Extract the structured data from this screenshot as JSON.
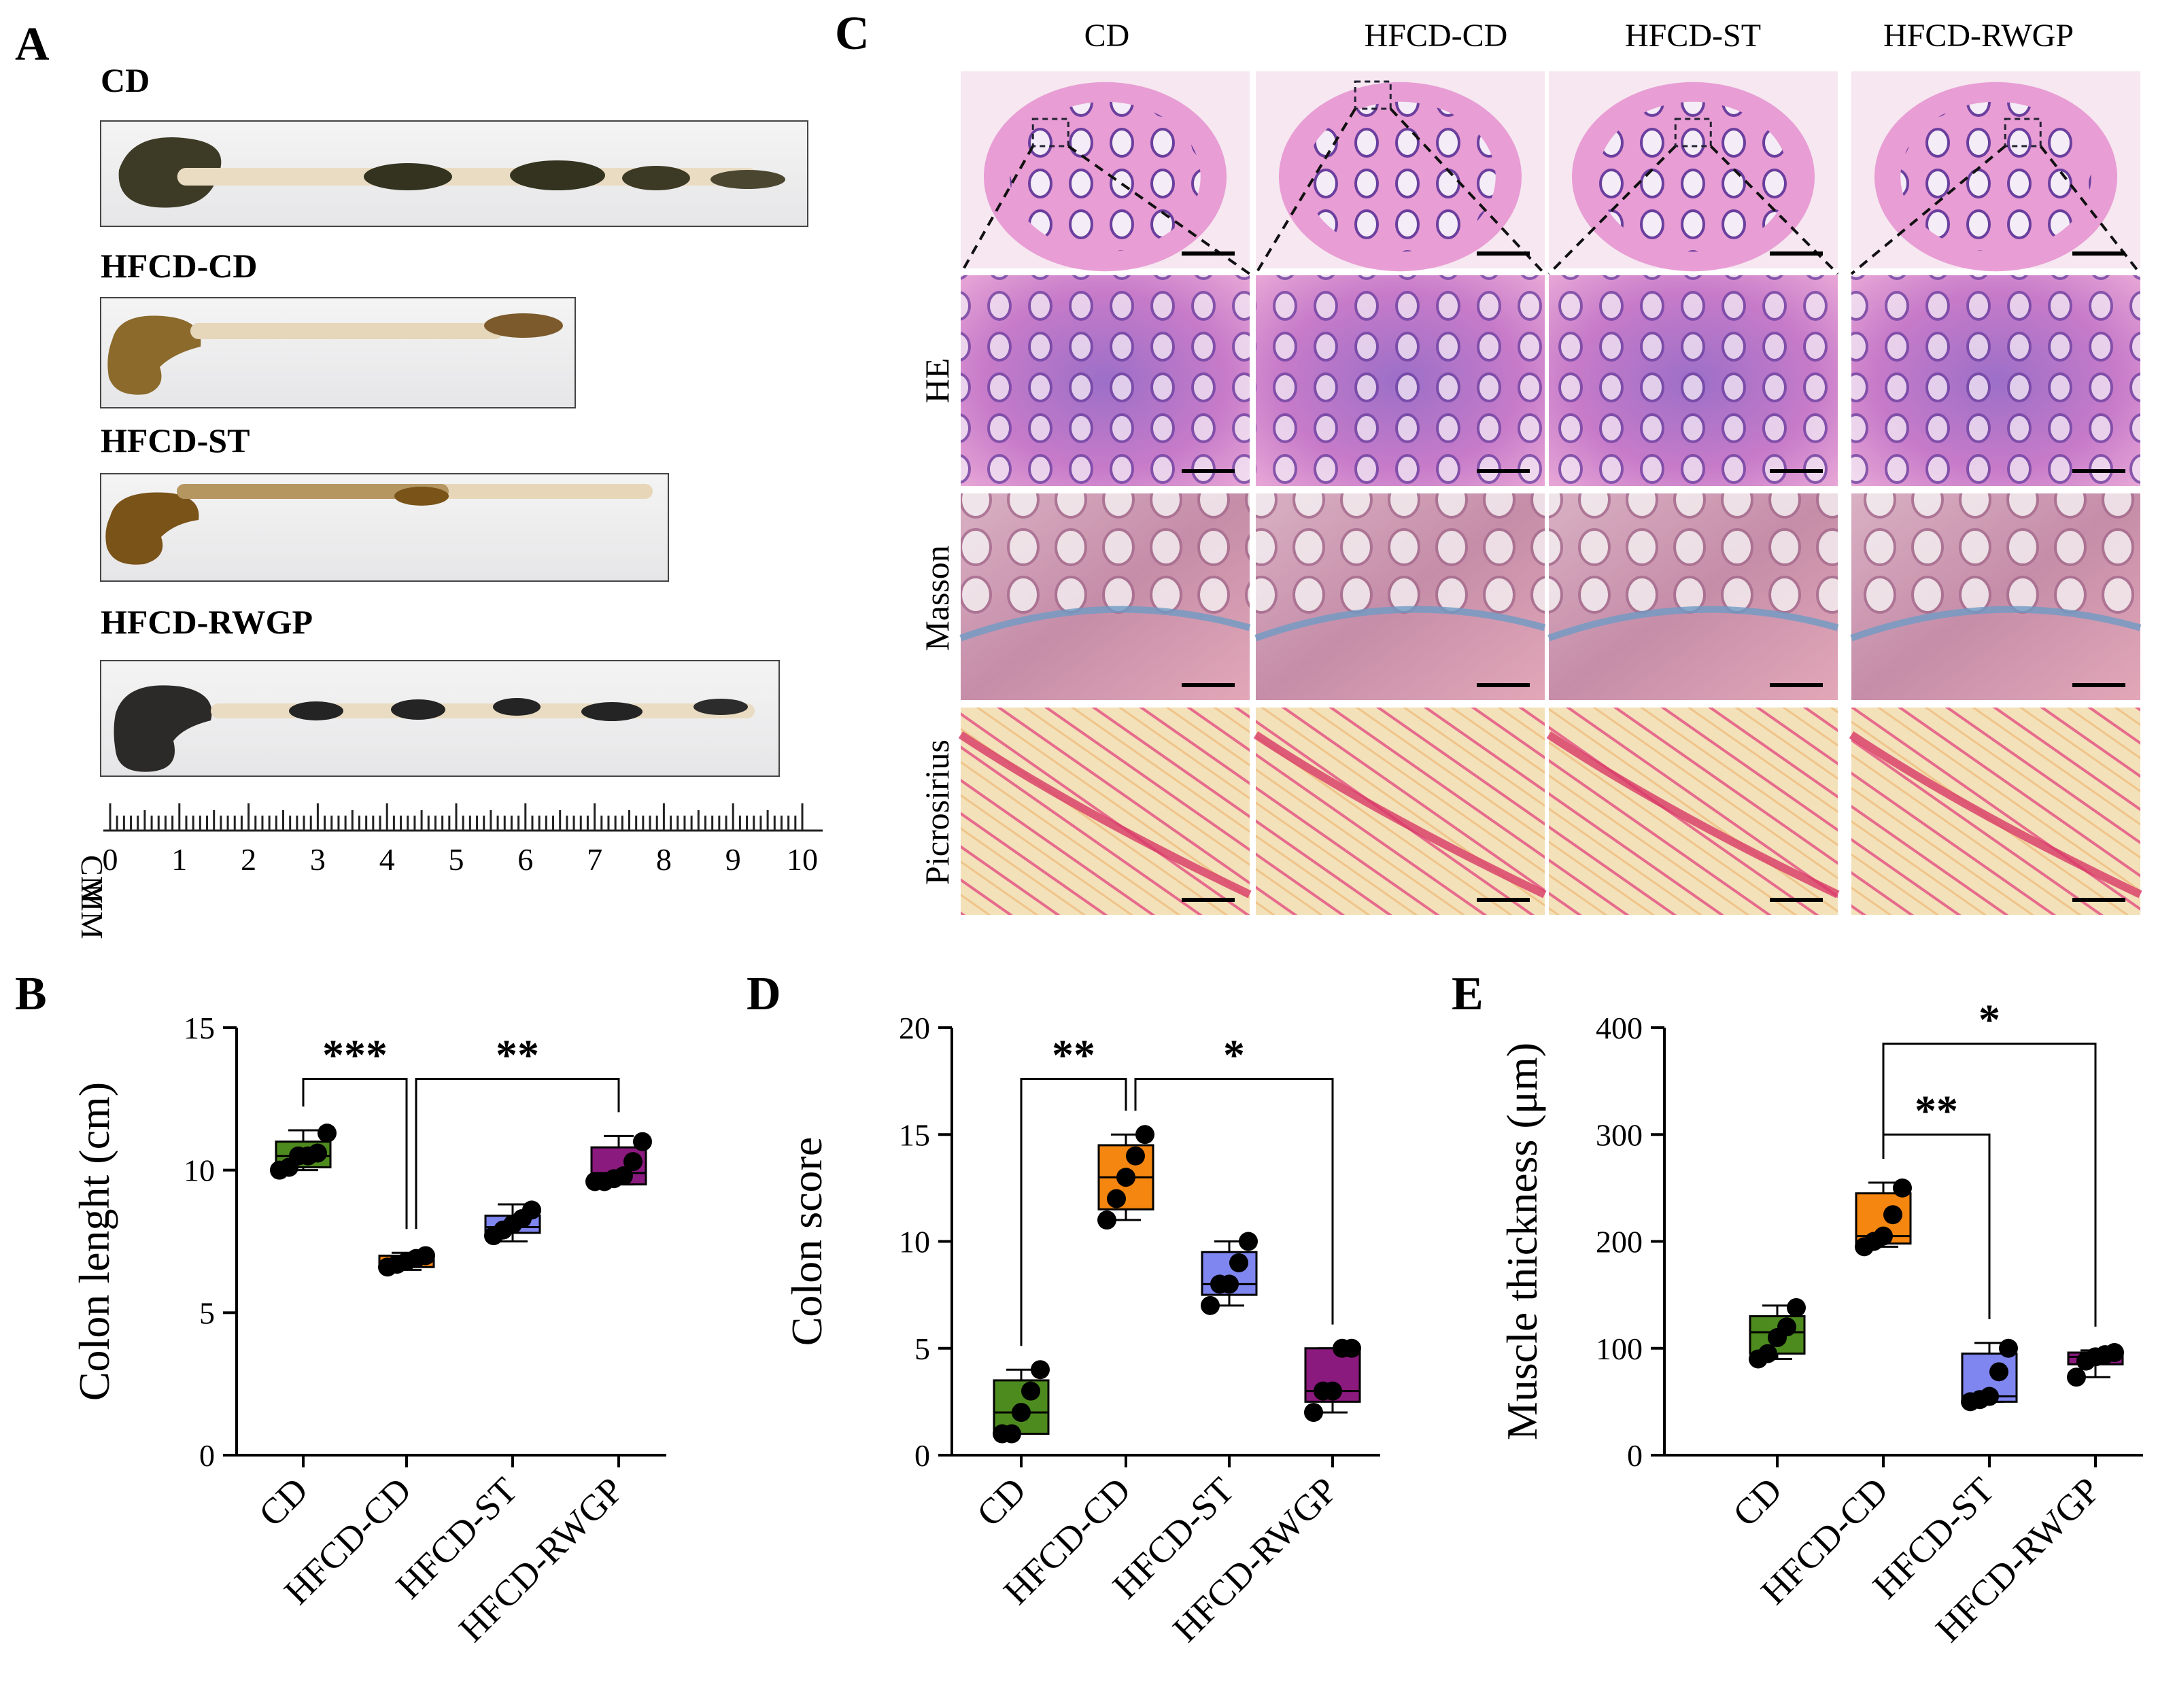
{
  "panels": {
    "a": {
      "label": "A",
      "groups": [
        "CD",
        "HFCD-CD",
        "HFCD-ST",
        "HFCD-RWGP"
      ],
      "ruler": {
        "unit_labels": [
          "MM",
          "CM"
        ],
        "ticks": [
          "0",
          "1",
          "2",
          "3",
          "4",
          "5",
          "6",
          "7",
          "8",
          "9",
          "10"
        ]
      }
    },
    "c": {
      "label": "C",
      "columns": [
        "CD",
        "HFCD-CD",
        "HFCD-ST",
        "HFCD-RWGP"
      ],
      "rows": [
        "HE",
        "Masson",
        "Picrosirius"
      ]
    },
    "b": {
      "label": "B"
    },
    "d": {
      "label": "D"
    },
    "e": {
      "label": "E"
    }
  },
  "colors": {
    "CD": "#4e8b1f",
    "HFCD-CD": "#f5860f",
    "HFCD-ST": "#7f86f0",
    "HFCD-RWGP": "#8b1a7e"
  },
  "chart_data": [
    {
      "panel": "B",
      "type": "box",
      "categories": [
        "CD",
        "HFCD-CD",
        "HFCD-ST",
        "HFCD-RWGP"
      ],
      "ylabel": "Colon lenght (cm)",
      "ylim": [
        0,
        15
      ],
      "yticks": [
        0,
        5,
        10,
        15
      ],
      "boxes": [
        {
          "min": 10.0,
          "q1": 10.1,
          "median": 10.5,
          "q3": 11.0,
          "max": 11.4
        },
        {
          "min": 6.5,
          "q1": 6.6,
          "median": 6.8,
          "q3": 7.0,
          "max": 7.1
        },
        {
          "min": 7.5,
          "q1": 7.8,
          "median": 8.0,
          "q3": 8.4,
          "max": 8.8
        },
        {
          "min": 9.5,
          "q1": 9.5,
          "median": 9.9,
          "q3": 10.8,
          "max": 11.2
        }
      ],
      "points": [
        [
          10.0,
          10.1,
          10.5,
          10.5,
          10.6,
          11.3
        ],
        [
          6.6,
          6.7,
          6.8,
          6.9,
          7.0
        ],
        [
          7.7,
          7.9,
          8.1,
          8.3,
          8.6
        ],
        [
          9.6,
          9.6,
          9.7,
          9.8,
          10.3,
          11.0
        ]
      ],
      "significance": [
        {
          "from": 0,
          "to": 1,
          "label": "***"
        },
        {
          "from": 1,
          "to": 3,
          "label": "**"
        }
      ]
    },
    {
      "panel": "D",
      "type": "box",
      "categories": [
        "CD",
        "HFCD-CD",
        "HFCD-ST",
        "HFCD-RWGP"
      ],
      "ylabel": "Colon score",
      "ylim": [
        0,
        20
      ],
      "yticks": [
        0,
        5,
        10,
        15,
        20
      ],
      "boxes": [
        {
          "min": 1.0,
          "q1": 1.0,
          "median": 2.0,
          "q3": 3.5,
          "max": 4.0
        },
        {
          "min": 11.0,
          "q1": 11.5,
          "median": 13.0,
          "q3": 14.5,
          "max": 15.0
        },
        {
          "min": 7.0,
          "q1": 7.5,
          "median": 8.0,
          "q3": 9.5,
          "max": 10.0
        },
        {
          "min": 2.0,
          "q1": 2.5,
          "median": 3.0,
          "q3": 5.0,
          "max": 5.0
        }
      ],
      "points": [
        [
          1.0,
          1.0,
          2.0,
          3.0,
          4.0
        ],
        [
          11.0,
          12.0,
          13.0,
          14.0,
          15.0
        ],
        [
          7.0,
          8.0,
          8.0,
          9.0,
          10.0
        ],
        [
          2.0,
          3.0,
          3.0,
          5.0,
          5.0
        ]
      ],
      "significance": [
        {
          "from": 0,
          "to": 1,
          "label": "**"
        },
        {
          "from": 1,
          "to": 3,
          "label": "*"
        }
      ]
    },
    {
      "panel": "E",
      "type": "box",
      "categories": [
        "CD",
        "HFCD-CD",
        "HFCD-ST",
        "HFCD-RWGP"
      ],
      "ylabel": "Muscle thickness (μm)",
      "ylim": [
        0,
        400
      ],
      "yticks": [
        0,
        100,
        200,
        300,
        400
      ],
      "boxes": [
        {
          "min": 90,
          "q1": 95,
          "median": 115,
          "q3": 130,
          "max": 140
        },
        {
          "min": 195,
          "q1": 198,
          "median": 205,
          "q3": 245,
          "max": 255
        },
        {
          "min": 50,
          "q1": 50,
          "median": 55,
          "q3": 95,
          "max": 105
        },
        {
          "min": 73,
          "q1": 85,
          "median": 92,
          "q3": 96,
          "max": 98
        }
      ],
      "points": [
        [
          90,
          95,
          110,
          120,
          138
        ],
        [
          195,
          200,
          205,
          225,
          250
        ],
        [
          50,
          52,
          55,
          78,
          100
        ],
        [
          73,
          88,
          92,
          94,
          96
        ]
      ],
      "significance": [
        {
          "from": 1,
          "to": 2,
          "label": "**"
        },
        {
          "from": 1,
          "to": 3,
          "label": "*"
        }
      ]
    }
  ]
}
